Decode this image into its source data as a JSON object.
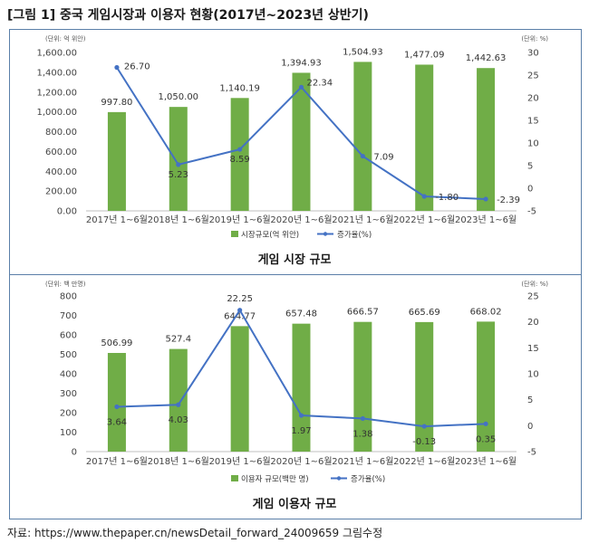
{
  "figure": {
    "title": "[그림 1] 중국 게임시장과 이용자 현황(2017년~2023년 상반기)",
    "source": "자료: https://www.thepaper.cn/newsDetail_forward_24009659 그림수정"
  },
  "colors": {
    "bar": "#70ad47",
    "line": "#4472c4",
    "frame": "#5a7fa8",
    "grid": "#d9d9d9"
  },
  "chart_data": [
    {
      "type": "bar",
      "title": "게임 시장 규모",
      "categories": [
        "2017년 1~6월",
        "2018년 1~6월",
        "2019년 1~6월",
        "2020년 1~6월",
        "2021년 1~6월",
        "2022년 1~6월",
        "2023년 1~6월"
      ],
      "left_unit": "(단위: 억 위안)",
      "right_unit": "(단위: %)",
      "ylim_left": [
        0,
        1600
      ],
      "left_ticks": [
        "0.00",
        "200.00",
        "400.00",
        "600.00",
        "800.00",
        "1,000.00",
        "1,200.00",
        "1,400.00",
        "1,600.00"
      ],
      "ylim_right": [
        -5,
        30
      ],
      "right_ticks": [
        "-5",
        "0",
        "5",
        "10",
        "15",
        "20",
        "25",
        "30"
      ],
      "legend_placement": "bottom",
      "series": [
        {
          "name": "시장규모(억 위안)",
          "kind": "bar",
          "axis": "left",
          "values": [
            997.8,
            1050.0,
            1140.19,
            1394.93,
            1504.93,
            1477.09,
            1442.63
          ],
          "labels": [
            "997.80",
            "1,050.00",
            "1,140.19",
            "1,394.93",
            "1,504.93",
            "1,477.09",
            "1,442.63"
          ]
        },
        {
          "name": "증가율(%)",
          "kind": "line",
          "axis": "right",
          "values": [
            26.7,
            5.23,
            8.59,
            22.34,
            7.09,
            -1.8,
            -2.39
          ],
          "labels": [
            "26.70",
            "5.23",
            "8.59",
            "22.34",
            "7.09",
            "-1.80",
            "-2.39"
          ]
        }
      ]
    },
    {
      "type": "bar",
      "title": "게임 이용자 규모",
      "categories": [
        "2017년 1~6월",
        "2018년 1~6월",
        "2019년 1~6월",
        "2020년 1~6월",
        "2021년 1~6월",
        "2022년 1~6월",
        "2023년 1~6월"
      ],
      "left_unit": "(단위: 백 만명)",
      "right_unit": "(단위: %)",
      "ylim_left": [
        0,
        800
      ],
      "left_ticks": [
        "0",
        "100",
        "200",
        "300",
        "400",
        "500",
        "600",
        "700",
        "800"
      ],
      "ylim_right": [
        -5,
        25
      ],
      "right_ticks": [
        "-5",
        "0",
        "5",
        "10",
        "15",
        "20",
        "25"
      ],
      "legend_placement": "bottom",
      "series": [
        {
          "name": "이용자 규모(백만 명)",
          "kind": "bar",
          "axis": "left",
          "values": [
            506.99,
            527.4,
            644.77,
            657.48,
            666.57,
            665.69,
            668.02
          ],
          "labels": [
            "506.99",
            "527.4",
            "644.77",
            "657.48",
            "666.57",
            "665.69",
            "668.02"
          ]
        },
        {
          "name": "증가율(%)",
          "kind": "line",
          "axis": "right",
          "values": [
            3.64,
            4.03,
            22.25,
            1.97,
            1.38,
            -0.13,
            0.35
          ],
          "labels": [
            "3.64",
            "4.03",
            "22.25",
            "1.97",
            "1.38",
            "-0.13",
            "0.35"
          ]
        }
      ]
    }
  ]
}
